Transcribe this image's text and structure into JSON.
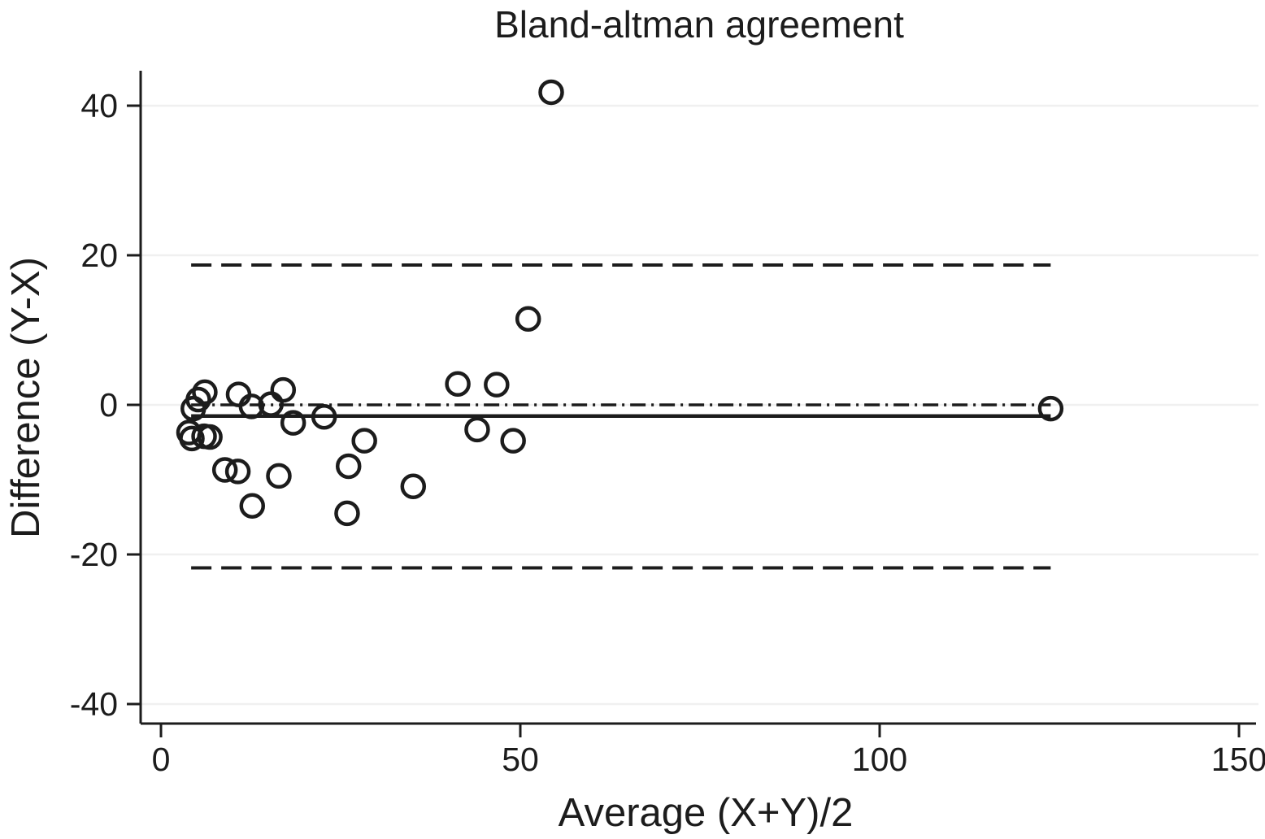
{
  "figure": {
    "background": "#ffffff",
    "ink_color": "#1c1c1c",
    "gridline_color": "#f0f0f0"
  },
  "chart_data": {
    "type": "scatter",
    "title": "Bland-altman agreement",
    "xlabel": "Average (X+Y)/2",
    "ylabel": "Difference (Y-X)",
    "xlim": [
      -3,
      153
    ],
    "ylim": [
      -43,
      45
    ],
    "xticks": [
      0,
      50,
      100,
      150
    ],
    "yticks": [
      -40,
      -20,
      0,
      20,
      40
    ],
    "grid": "horizontal-light",
    "legend": "none",
    "marker": "open-circle",
    "points": [
      [
        3.9,
        -3.7
      ],
      [
        4.3,
        -4.5
      ],
      [
        4.5,
        -0.5
      ],
      [
        5.2,
        0.7
      ],
      [
        6.0,
        -4.2
      ],
      [
        6.1,
        1.7
      ],
      [
        6.8,
        -4.3
      ],
      [
        8.9,
        -8.7
      ],
      [
        10.7,
        -8.9
      ],
      [
        10.8,
        1.4
      ],
      [
        12.6,
        -0.2
      ],
      [
        12.7,
        -13.5
      ],
      [
        15.3,
        0.1
      ],
      [
        16.4,
        -9.5
      ],
      [
        17.0,
        2.0
      ],
      [
        18.4,
        -2.4
      ],
      [
        22.7,
        -1.6
      ],
      [
        25.9,
        -14.5
      ],
      [
        26.1,
        -8.2
      ],
      [
        28.3,
        -4.8
      ],
      [
        35.1,
        -10.9
      ],
      [
        41.3,
        2.8
      ],
      [
        44.0,
        -3.3
      ],
      [
        46.7,
        2.7
      ],
      [
        49.0,
        -4.8
      ],
      [
        51.1,
        11.5
      ],
      [
        54.3,
        41.8
      ],
      [
        123.8,
        -0.5
      ]
    ],
    "reference_lines": [
      {
        "name": "upper-loa-line",
        "label": "upper limit of agreement",
        "y": 18.7,
        "style": "dashed"
      },
      {
        "name": "zero-line",
        "label": "zero difference",
        "y": 0,
        "style": "dash-dot"
      },
      {
        "name": "mean-line",
        "label": "mean difference",
        "y": -1.5,
        "style": "solid"
      },
      {
        "name": "lower-loa-line",
        "label": "lower limit of agreement",
        "y": -21.8,
        "style": "dashed"
      }
    ],
    "reference_line_x_extent": [
      4.2,
      123.8
    ]
  }
}
